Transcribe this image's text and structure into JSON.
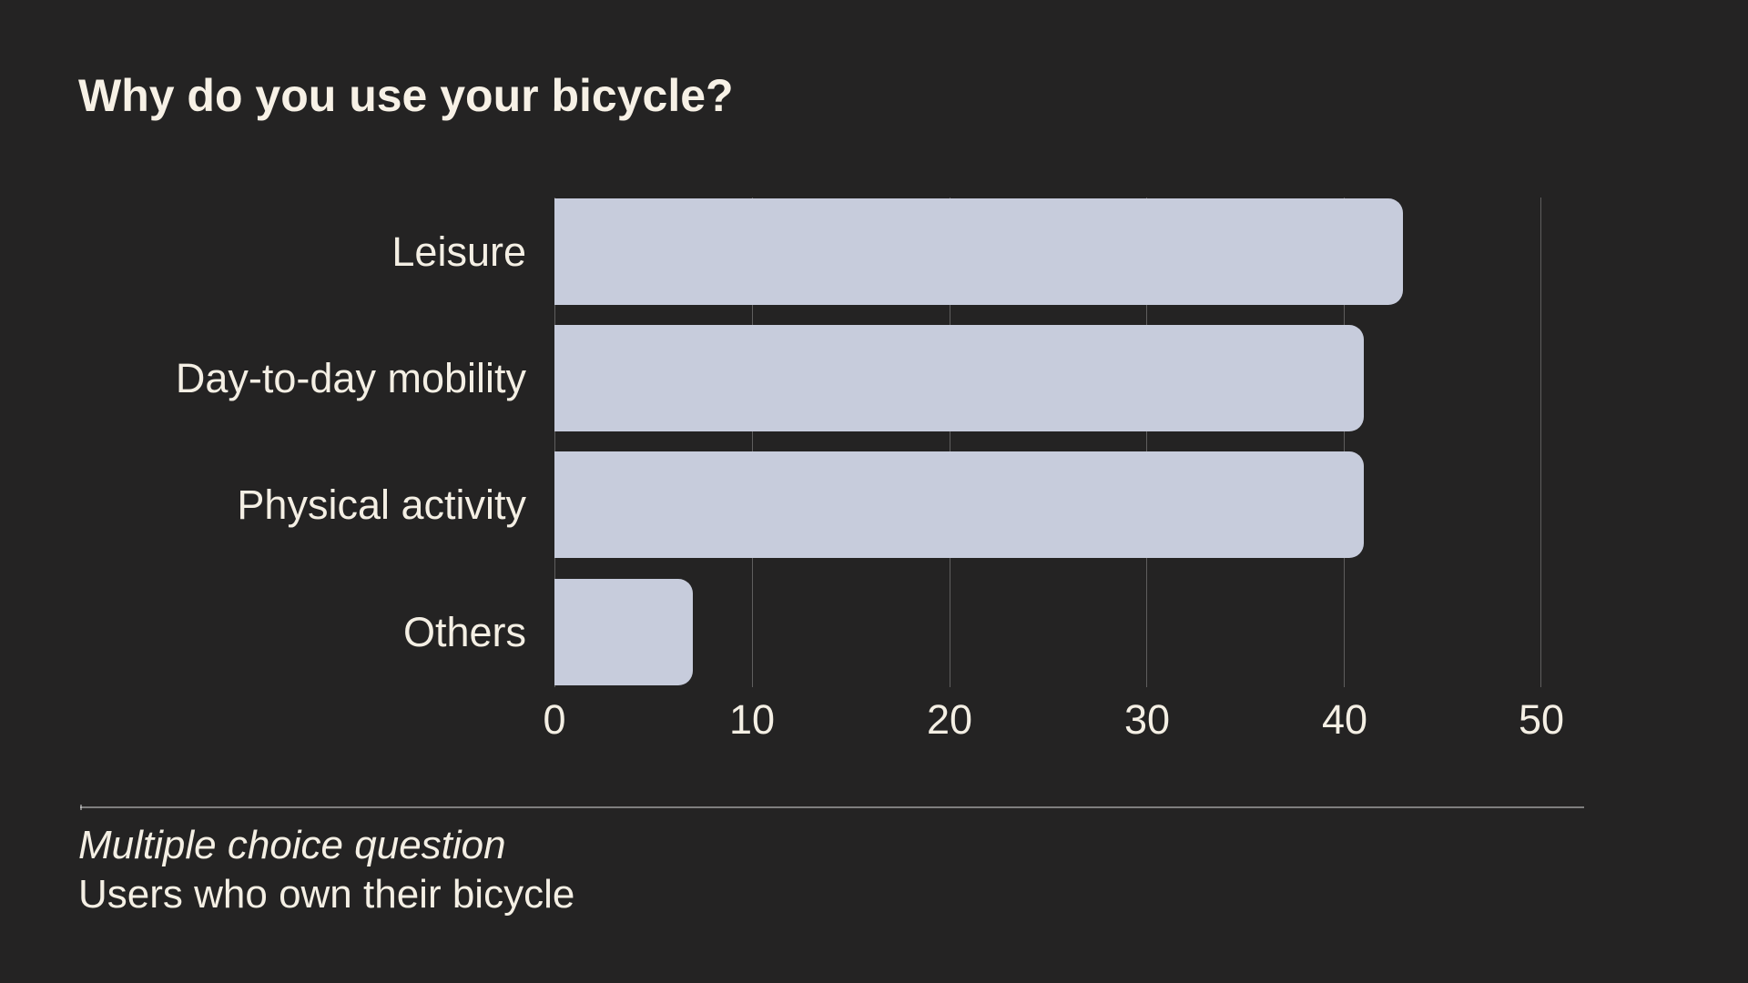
{
  "title": "Why do you use your bicycle?",
  "chart_data": {
    "type": "bar",
    "orientation": "horizontal",
    "title": "Why do you use your bicycle?",
    "categories": [
      "Leisure",
      "Day-to-day mobility",
      "Physical activity",
      "Others"
    ],
    "values": [
      43,
      41,
      41,
      7
    ],
    "x_ticks": [
      "0",
      "10",
      "20",
      "30",
      "40",
      "50"
    ],
    "xlim": [
      0,
      50
    ],
    "grid": true,
    "legend": false,
    "bar_color": "#c7ccdc",
    "background_color": "#242323",
    "text_color": "#f4efe4"
  },
  "footer": {
    "line1": "Multiple choice question",
    "line2": "Users who own their bicycle"
  }
}
